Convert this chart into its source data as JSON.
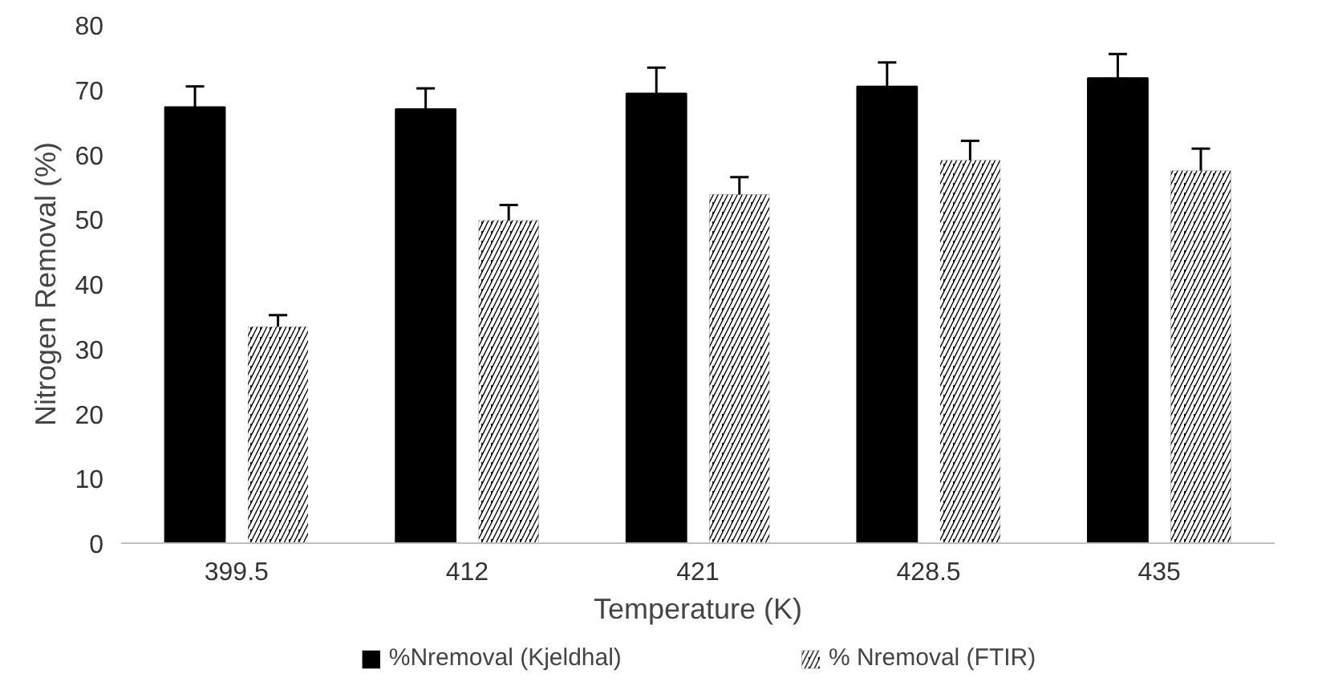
{
  "chart_data": {
    "type": "bar",
    "xlabel": "Temperature (K)",
    "ylabel": "Nitrogen Removal (%)",
    "categories": [
      "399.5",
      "412",
      "421",
      "428.5",
      "435"
    ],
    "series": [
      {
        "name": "%Nremoval (Kjeldhal)",
        "color": "#000000",
        "values": [
          67.3,
          67.0,
          69.4,
          70.5,
          71.8
        ],
        "errors": [
          [
            67.3,
            70.5
          ],
          [
            67.0,
            70.2
          ],
          [
            69.4,
            73.4
          ],
          [
            70.5,
            74.2
          ],
          [
            71.8,
            75.5
          ]
        ]
      },
      {
        "name": "% Nremoval (FTIR)",
        "color": "#000000",
        "values": [
          33.4,
          49.8,
          53.8,
          59.1,
          57.5
        ],
        "errors": [
          [
            33.4,
            35.2
          ],
          [
            49.8,
            52.2
          ],
          [
            53.8,
            56.5
          ],
          [
            59.1,
            62.1
          ],
          [
            57.5,
            60.9
          ]
        ]
      }
    ],
    "ylim": [
      0,
      80
    ],
    "yticks": [
      0,
      10,
      20,
      30,
      40,
      50,
      60,
      70,
      80
    ],
    "grid": false,
    "legend": "bottom"
  }
}
